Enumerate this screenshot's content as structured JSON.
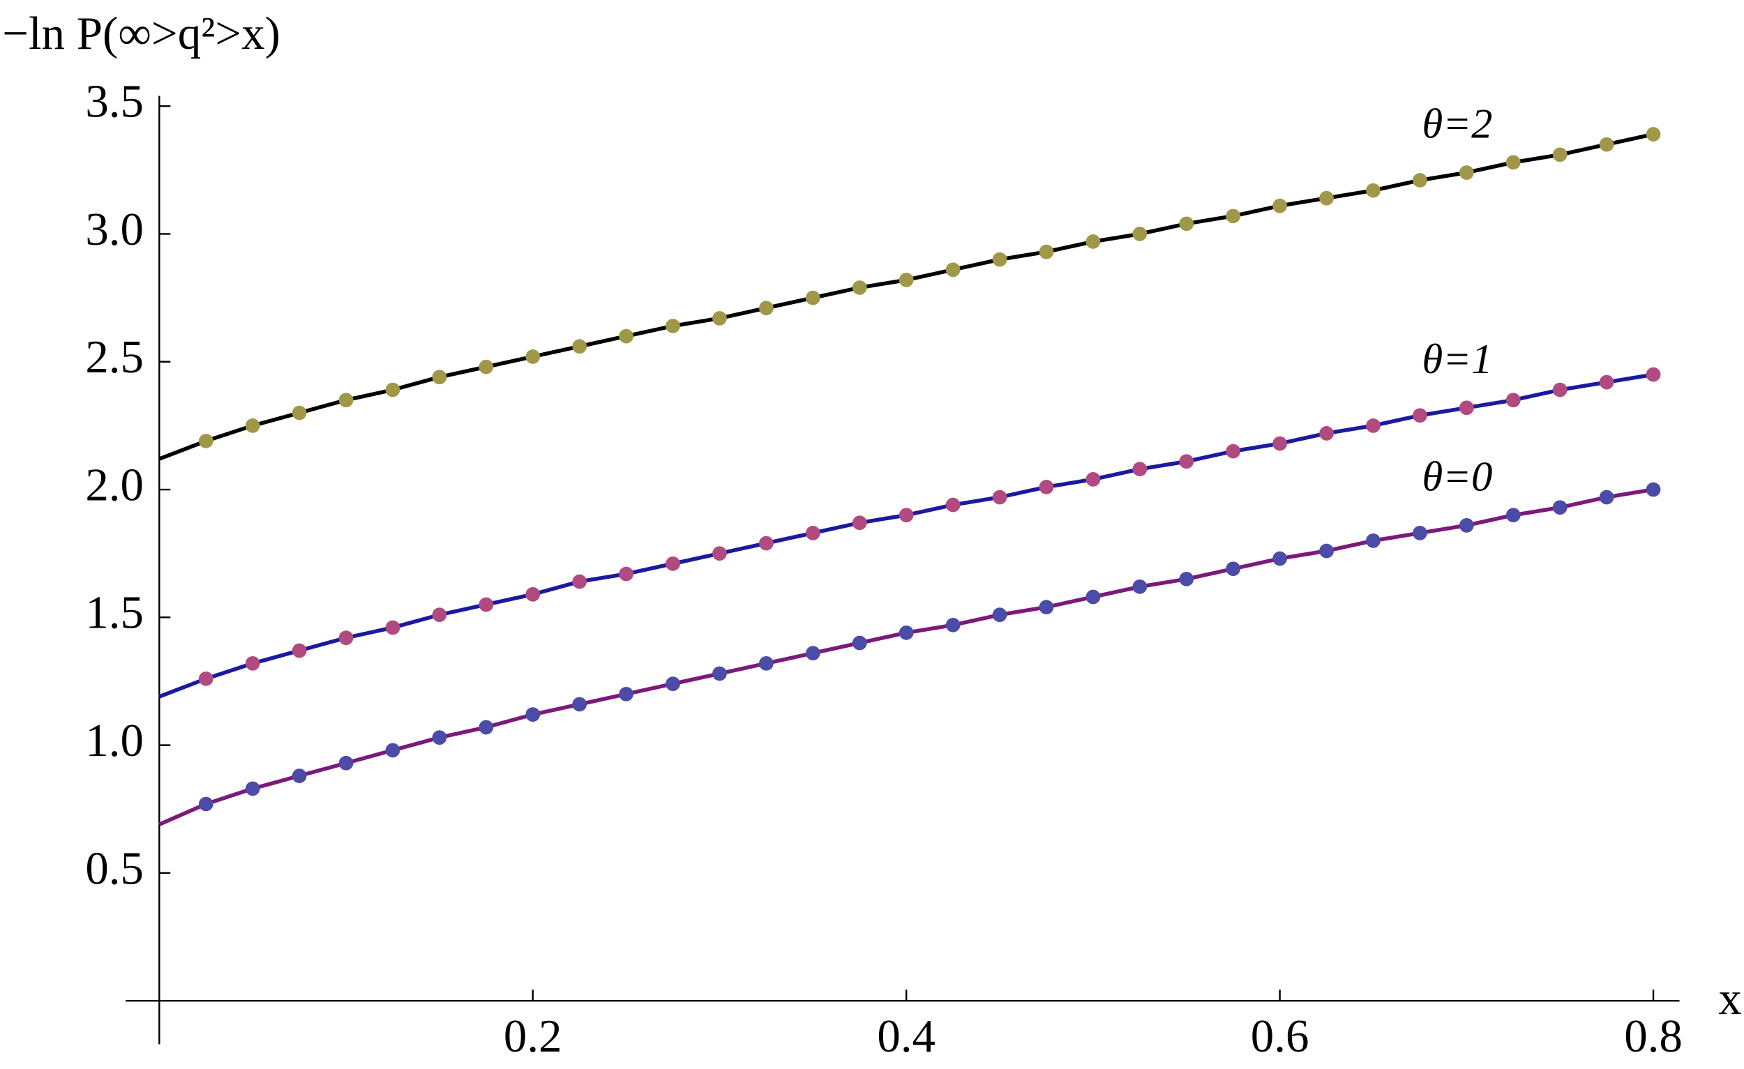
{
  "chart_data": {
    "type": "line",
    "y_label": "−ln P(∞>q²>x)",
    "x_label": "x",
    "x": [
      0,
      0.025,
      0.05,
      0.075,
      0.1,
      0.125,
      0.15,
      0.175,
      0.2,
      0.225,
      0.25,
      0.275,
      0.3,
      0.325,
      0.35,
      0.375,
      0.4,
      0.425,
      0.45,
      0.475,
      0.5,
      0.525,
      0.55,
      0.575,
      0.6,
      0.625,
      0.65,
      0.675,
      0.7,
      0.725,
      0.75,
      0.775,
      0.8
    ],
    "series": [
      {
        "name": "θ=0",
        "color": "#7a1a7a",
        "marker_color": "#4b4ba8",
        "values": [
          0.69,
          0.77,
          0.83,
          0.88,
          0.93,
          0.98,
          1.03,
          1.07,
          1.12,
          1.16,
          1.2,
          1.24,
          1.28,
          1.32,
          1.36,
          1.4,
          1.44,
          1.47,
          1.51,
          1.54,
          1.58,
          1.62,
          1.65,
          1.69,
          1.73,
          1.76,
          1.8,
          1.83,
          1.86,
          1.9,
          1.93,
          1.97,
          2.0
        ],
        "marker_values": [
          null,
          0.77,
          0.83,
          0.88,
          0.93,
          0.98,
          1.03,
          1.07,
          1.12,
          1.16,
          1.2,
          1.24,
          1.28,
          1.32,
          1.36,
          1.4,
          1.44,
          1.47,
          1.51,
          1.54,
          1.58,
          1.62,
          1.65,
          1.69,
          1.73,
          1.76,
          1.8,
          1.83,
          1.86,
          1.9,
          1.93,
          1.97,
          2.0
        ]
      },
      {
        "name": "θ=1",
        "color": "#1a1aa0",
        "marker_color": "#b04a80",
        "values": [
          1.19,
          1.26,
          1.32,
          1.37,
          1.42,
          1.46,
          1.51,
          1.55,
          1.59,
          1.64,
          1.67,
          1.71,
          1.75,
          1.79,
          1.83,
          1.87,
          1.9,
          1.94,
          1.97,
          2.01,
          2.04,
          2.08,
          2.11,
          2.15,
          2.18,
          2.22,
          2.25,
          2.29,
          2.32,
          2.35,
          2.39,
          2.42,
          2.45
        ],
        "marker_values": [
          null,
          1.26,
          1.32,
          1.37,
          1.42,
          1.46,
          1.51,
          1.55,
          1.59,
          1.64,
          1.67,
          1.71,
          1.75,
          1.79,
          1.83,
          1.87,
          1.9,
          1.94,
          1.97,
          2.01,
          2.04,
          2.08,
          2.11,
          2.15,
          2.18,
          2.22,
          2.25,
          2.29,
          2.32,
          2.35,
          2.39,
          2.42,
          2.45
        ]
      },
      {
        "name": "θ=2",
        "color": "#000000",
        "marker_color": "#a09848",
        "values": [
          2.12,
          2.19,
          2.25,
          2.3,
          2.35,
          2.39,
          2.44,
          2.48,
          2.52,
          2.56,
          2.6,
          2.64,
          2.67,
          2.71,
          2.75,
          2.79,
          2.82,
          2.86,
          2.9,
          2.93,
          2.97,
          3.0,
          3.04,
          3.07,
          3.11,
          3.14,
          3.17,
          3.21,
          3.24,
          3.28,
          3.31,
          3.35,
          3.39
        ],
        "marker_values": [
          null,
          2.19,
          2.25,
          2.3,
          2.35,
          2.39,
          2.44,
          2.48,
          2.52,
          2.56,
          2.6,
          2.64,
          2.67,
          2.71,
          2.75,
          2.79,
          2.82,
          2.86,
          2.9,
          2.93,
          2.97,
          3.0,
          3.04,
          3.07,
          3.11,
          3.14,
          3.17,
          3.21,
          3.24,
          3.28,
          3.31,
          3.35,
          3.39
        ]
      }
    ],
    "xlim": [
      -0.018,
      0.814
    ],
    "ylim": [
      -0.17,
      3.54
    ],
    "xticks": [
      0.2,
      0.4,
      0.6,
      0.8
    ],
    "yticks": [
      0.5,
      {
        "value": 1,
        "label": "1.0"
      },
      1.5,
      {
        "value": 2,
        "label": "2.0"
      },
      2.5,
      {
        "value": 3,
        "label": "3.0"
      },
      3.5
    ]
  }
}
